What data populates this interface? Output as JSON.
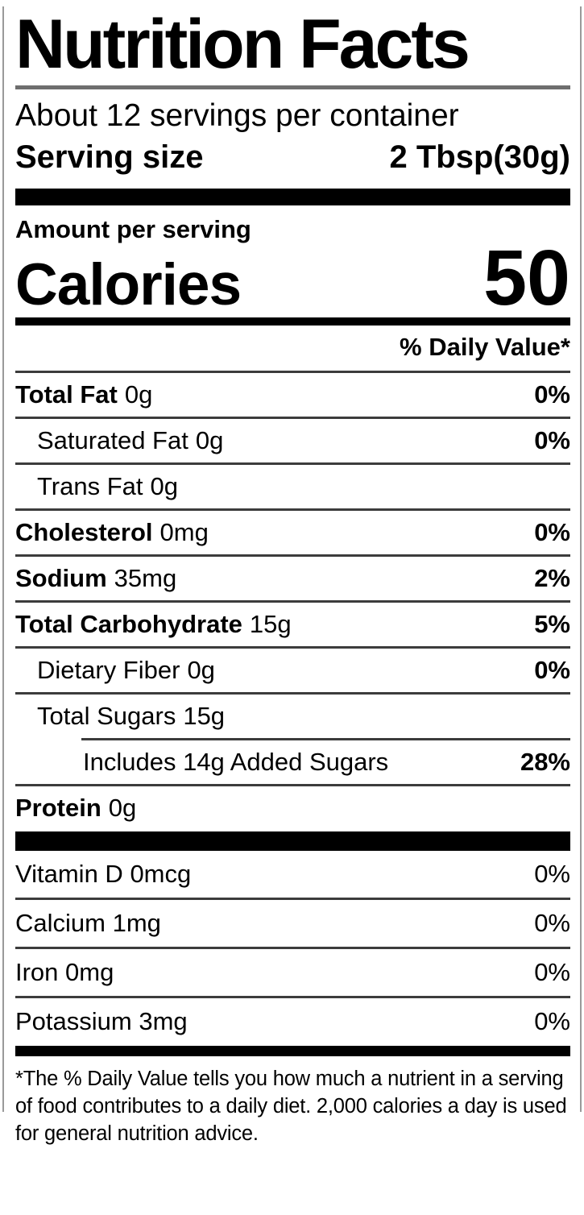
{
  "label": {
    "title": "Nutrition Facts",
    "servings_per_container": "About 12 servings per container",
    "serving_size_label": "Serving size",
    "serving_size_value": "2 Tbsp(30g)",
    "amount_per_serving_label": "Amount per serving",
    "calories_label": "Calories",
    "calories_value": "50",
    "daily_value_header": "% Daily Value*",
    "nutrients": [
      {
        "name": "Total Fat",
        "amount": "0g",
        "daily_value": "0%"
      },
      {
        "name": "Saturated Fat",
        "amount": "0g",
        "daily_value": "0%"
      },
      {
        "name": "Trans Fat",
        "amount": "0g",
        "daily_value": ""
      },
      {
        "name": "Cholesterol",
        "amount": "0mg",
        "daily_value": "0%"
      },
      {
        "name": "Sodium",
        "amount": "35mg",
        "daily_value": "2%"
      },
      {
        "name": "Total Carbohydrate",
        "amount": "15g",
        "daily_value": "5%"
      },
      {
        "name": "Dietary Fiber",
        "amount": "0g",
        "daily_value": "0%"
      },
      {
        "name": "Total Sugars",
        "amount": "15g",
        "daily_value": ""
      },
      {
        "name": "Includes 14g Added Sugars",
        "amount": "",
        "daily_value": "28%"
      },
      {
        "name": "Protein",
        "amount": "0g",
        "daily_value": ""
      }
    ],
    "micronutrients": [
      {
        "name": "Vitamin D",
        "amount": "0mcg",
        "daily_value": "0%"
      },
      {
        "name": "Calcium",
        "amount": "1mg",
        "daily_value": "0%"
      },
      {
        "name": "Iron",
        "amount": "0mg",
        "daily_value": "0%"
      },
      {
        "name": "Potassium",
        "amount": "3mg",
        "daily_value": "0%"
      }
    ],
    "footnote": "*The % Daily Value tells you how much a nutrient in a serving of food contributes to a daily diet. 2,000 calories a day is used for general nutrition advice.",
    "colors": {
      "background": "#ffffff",
      "text": "#000000",
      "bar": "#000000",
      "thin_rule": "#3c3c3c",
      "title_rule": "#6e6e6e",
      "border": "#9a9a9a"
    }
  }
}
